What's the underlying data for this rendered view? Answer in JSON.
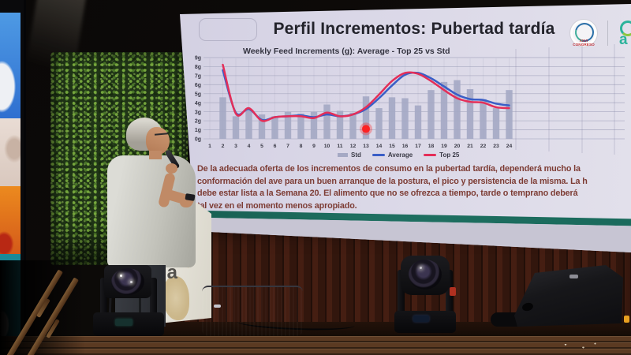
{
  "slide": {
    "title": "Perfil Incrementos: Pubertad tardía",
    "congress_logo_text": "XXVI CONGRESO",
    "partner_logo_partial": "a",
    "paragraph_lines": [
      "De la adecuada oferta de los incrementos de consumo en la pubertad tardía, dependerá mucho la",
      "conformación del ave para un buen arranque de la postura, el pico y persistencia de la misma. La h",
      "debe estar lista a la Semana 20. El alimento que no se ofrezca a tiempo, tarde o temprano deberá",
      "tal vez en el momento menos apropiado."
    ]
  },
  "podium": {
    "logo_text": "pa"
  },
  "chart_data": {
    "type": "combo-bar-line",
    "title": "Weekly Feed Increments (g): Average - Top 25 vs Std",
    "xlabel": "",
    "ylabel": "",
    "ylim": [
      0,
      9
    ],
    "grid": true,
    "legend_position": "bottom",
    "y_tick_labels": [
      "0g",
      "1g",
      "2g",
      "3g",
      "4g",
      "5g",
      "6g",
      "7g",
      "8g",
      "9g"
    ],
    "categories": [
      "1",
      "2",
      "3",
      "4",
      "5",
      "6",
      "7",
      "8",
      "9",
      "10",
      "11",
      "12",
      "13",
      "14",
      "15",
      "16",
      "17",
      "18",
      "19",
      "20",
      "21",
      "22",
      "23",
      "24"
    ],
    "series": [
      {
        "name": "Std",
        "type": "bar",
        "color": "#a5a9c4",
        "values": [
          null,
          4.6,
          2.5,
          3.3,
          2.7,
          2.5,
          3.0,
          2.8,
          3.0,
          3.8,
          3.1,
          2.9,
          4.7,
          3.4,
          4.6,
          4.5,
          3.7,
          5.4,
          6.3,
          6.5,
          5.5,
          4.4,
          3.4,
          5.4
        ]
      },
      {
        "name": "Average",
        "type": "line",
        "color": "#3a5ec6",
        "values": [
          null,
          7.6,
          2.9,
          3.3,
          2.1,
          2.4,
          2.5,
          2.6,
          2.4,
          2.7,
          2.5,
          2.7,
          3.3,
          4.5,
          5.9,
          7.1,
          7.3,
          6.7,
          5.8,
          4.9,
          4.4,
          4.3,
          3.9,
          3.7
        ]
      },
      {
        "name": "Top 25",
        "type": "line",
        "color": "#e42e58",
        "values": [
          null,
          8.2,
          2.8,
          3.4,
          2.0,
          2.4,
          2.5,
          2.5,
          2.3,
          2.9,
          2.5,
          2.7,
          3.5,
          4.9,
          6.4,
          7.3,
          7.2,
          6.4,
          5.4,
          4.5,
          4.1,
          4.0,
          3.5,
          3.4
        ]
      }
    ],
    "annotation": {
      "type": "dot",
      "week": 13,
      "value": 1.1,
      "color": "#ff1c1c"
    }
  }
}
